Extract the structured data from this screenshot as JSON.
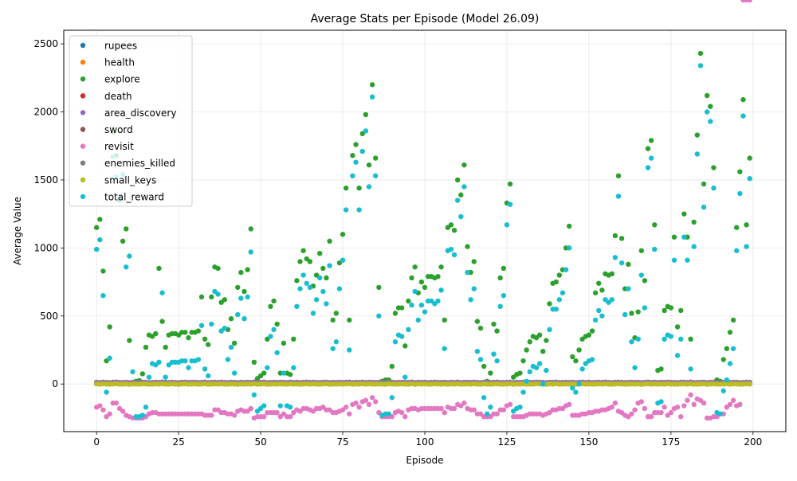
{
  "chart_data": {
    "type": "scatter",
    "title": "Average Stats per Episode (Model 26.09)",
    "xlabel": "Episode",
    "ylabel": "Average Value",
    "xlim": [
      -10,
      210
    ],
    "ylim": [
      -350,
      2600
    ],
    "xticks": [
      0,
      25,
      50,
      75,
      100,
      125,
      150,
      175,
      200
    ],
    "yticks": [
      0,
      500,
      1000,
      1500,
      2000,
      2500
    ],
    "grid": true,
    "legend_position": "top-left",
    "series": [
      {
        "name": "rupees",
        "color": "#1f77b4",
        "pattern": "flat",
        "base": 5
      },
      {
        "name": "health",
        "color": "#ff7f0e",
        "pattern": "flat",
        "base": 3
      },
      {
        "name": "explore",
        "color": "#2ca02c",
        "pattern": "explore"
      },
      {
        "name": "death",
        "color": "#d62728",
        "pattern": "flat",
        "base": 0
      },
      {
        "name": "area_discovery",
        "color": "#9467bd",
        "pattern": "flat",
        "base": 12
      },
      {
        "name": "sword",
        "color": "#8c564b",
        "pattern": "flat",
        "base": 1
      },
      {
        "name": "revisit",
        "color": "#e377c2",
        "pattern": "revisit"
      },
      {
        "name": "enemies_killed",
        "color": "#7f7f7f",
        "pattern": "flat",
        "base": 2
      },
      {
        "name": "small_keys",
        "color": "#bcbd22",
        "pattern": "flat",
        "base": 0
      },
      {
        "name": "total_reward",
        "color": "#17becf",
        "pattern": "total"
      }
    ],
    "explore_values": [
      1150,
      1210,
      830,
      170,
      420,
      1850,
      1680,
      1350,
      1050,
      1140,
      320,
      10,
      20,
      25,
      75,
      270,
      360,
      350,
      370,
      850,
      460,
      270,
      360,
      370,
      370,
      360,
      380,
      380,
      340,
      380,
      380,
      390,
      640,
      330,
      290,
      640,
      860,
      850,
      600,
      620,
      400,
      480,
      300,
      710,
      820,
      680,
      840,
      1140,
      160,
      40,
      60,
      80,
      330,
      570,
      610,
      440,
      80,
      300,
      80,
      70,
      330,
      760,
      900,
      980,
      920,
      900,
      720,
      800,
      960,
      850,
      780,
      1050,
      470,
      520,
      890,
      1100,
      1440,
      470,
      1680,
      1760,
      1440,
      1840,
      1980,
      1610,
      2200,
      1660,
      710,
      20,
      30,
      30,
      130,
      520,
      560,
      560,
      280,
      610,
      780,
      860,
      670,
      750,
      710,
      790,
      790,
      780,
      790,
      860,
      470,
      1150,
      1170,
      1130,
      1500,
      1390,
      1610,
      1010,
      820,
      900,
      460,
      410,
      130,
      20,
      80,
      440,
      390,
      780,
      850,
      1330,
      1470,
      50,
      70,
      80,
      170,
      250,
      310,
      350,
      340,
      360,
      240,
      320,
      590,
      740,
      750,
      800,
      840,
      1000,
      1160,
      200,
      170,
      250,
      330,
      350,
      360,
      390,
      670,
      740,
      690,
      810,
      800,
      810,
      1090,
      1530,
      1070,
      700,
      880,
      520,
      340,
      530,
      980,
      760,
      1730,
      1790,
      1170,
      100,
      110,
      540,
      570,
      560,
      1080,
      420,
      540,
      1250,
      1080,
      330,
      1190,
      1830,
      2430,
      1470,
      2120,
      2040,
      1590,
      30,
      20,
      180,
      260,
      380,
      470,
      1150,
      1560,
      2090,
      1170,
      1660
    ],
    "total_values": [
      990,
      1060,
      650,
      -60,
      190,
      1670,
      1520,
      1370,
      1540,
      860,
      940,
      90,
      -240,
      -240,
      -230,
      -170,
      50,
      150,
      140,
      160,
      670,
      50,
      140,
      160,
      160,
      160,
      170,
      170,
      120,
      170,
      170,
      180,
      430,
      110,
      60,
      440,
      680,
      660,
      390,
      410,
      180,
      270,
      80,
      510,
      630,
      480,
      640,
      970,
      -80,
      -200,
      -180,
      -160,
      120,
      350,
      400,
      230,
      -160,
      80,
      -160,
      -170,
      120,
      570,
      700,
      800,
      740,
      710,
      520,
      620,
      780,
      680,
      590,
      870,
      260,
      310,
      700,
      910,
      1280,
      250,
      1530,
      1630,
      1280,
      1710,
      1860,
      1450,
      2110,
      1530,
      500,
      -230,
      -220,
      -220,
      -100,
      310,
      360,
      350,
      50,
      400,
      580,
      680,
      470,
      580,
      530,
      610,
      610,
      590,
      610,
      690,
      260,
      980,
      990,
      950,
      1350,
      1230,
      1450,
      820,
      620,
      700,
      240,
      180,
      -100,
      -220,
      -170,
      220,
      170,
      570,
      650,
      1170,
      1320,
      -200,
      -180,
      -170,
      -60,
      20,
      90,
      130,
      120,
      150,
      0,
      100,
      400,
      550,
      550,
      620,
      670,
      840,
      1000,
      -30,
      -60,
      0,
      110,
      150,
      170,
      180,
      470,
      540,
      500,
      620,
      600,
      620,
      930,
      1380,
      890,
      510,
      700,
      310,
      120,
      330,
      800,
      560,
      1590,
      1660,
      990,
      -140,
      -130,
      330,
      360,
      350,
      910,
      210,
      330,
      1080,
      910,
      110,
      1010,
      1690,
      2340,
      1300,
      2000,
      1930,
      1440,
      -210,
      -220,
      -50,
      30,
      150,
      260,
      980,
      1400,
      1970,
      1010,
      1510
    ],
    "revisit_values": [
      -170,
      -160,
      -190,
      -240,
      -220,
      -140,
      -140,
      -180,
      -200,
      -230,
      -240,
      -250,
      -250,
      -250,
      -250,
      -240,
      -220,
      -210,
      -210,
      -220,
      -220,
      -220,
      -220,
      -220,
      -220,
      -220,
      -220,
      -220,
      -220,
      -220,
      -220,
      -220,
      -220,
      -230,
      -230,
      -230,
      -190,
      -190,
      -210,
      -210,
      -220,
      -220,
      -230,
      -200,
      -190,
      -200,
      -200,
      -180,
      -250,
      -240,
      -240,
      -240,
      -210,
      -210,
      -210,
      -210,
      -240,
      -220,
      -240,
      -240,
      -210,
      -190,
      -200,
      -180,
      -180,
      -190,
      -200,
      -180,
      -180,
      -170,
      -190,
      -190,
      -210,
      -210,
      -200,
      -190,
      -170,
      -220,
      -150,
      -140,
      -170,
      -130,
      -120,
      -150,
      -100,
      -130,
      -210,
      -240,
      -240,
      -240,
      -240,
      -210,
      -200,
      -210,
      -240,
      -190,
      -180,
      -180,
      -190,
      -180,
      -180,
      -180,
      -180,
      -180,
      -180,
      -180,
      -210,
      -170,
      -180,
      -180,
      -150,
      -160,
      -140,
      -180,
      -190,
      -190,
      -220,
      -220,
      -240,
      -240,
      -240,
      -220,
      -220,
      -190,
      -190,
      -160,
      -150,
      -240,
      -240,
      -240,
      -240,
      -230,
      -220,
      -220,
      -220,
      -220,
      -230,
      -220,
      -210,
      -190,
      -190,
      -180,
      -180,
      -160,
      -150,
      -230,
      -230,
      -230,
      -220,
      -220,
      -210,
      -210,
      -200,
      -200,
      -190,
      -190,
      -180,
      -170,
      -140,
      -200,
      -210,
      -230,
      -240,
      -220,
      -190,
      -140,
      -130,
      -180,
      -240,
      -240,
      -210,
      -210,
      -210,
      -170,
      -230,
      -210,
      -180,
      -170,
      -240,
      -160,
      -120,
      -80,
      -150,
      -110,
      -120,
      -140,
      -250,
      -250,
      -240,
      -240,
      -220,
      -220,
      -170,
      -150,
      -120,
      -160,
      -150
    ],
    "flat_jitter": [
      3,
      -2,
      4,
      1,
      -3,
      2,
      5,
      -1,
      0,
      3,
      -4,
      2,
      1,
      -2,
      4,
      3,
      -3,
      0,
      2,
      -1,
      5,
      1,
      -2,
      3,
      0,
      -4,
      2,
      4,
      -1,
      1,
      3,
      -2,
      0,
      5,
      -3,
      1,
      2,
      -1,
      4,
      0,
      -2,
      3,
      1,
      -4,
      2,
      0,
      3,
      -1,
      5,
      -2,
      1,
      4,
      -3,
      0,
      2,
      -1,
      3,
      1,
      -2,
      4,
      0,
      2,
      -3,
      1,
      5,
      -1,
      3,
      0,
      -2,
      2,
      4,
      -4,
      1,
      0,
      3,
      -1,
      2,
      5,
      -3,
      1,
      0,
      4,
      -2,
      3,
      1,
      -1,
      2,
      0,
      -3,
      4,
      2,
      -2,
      1,
      3,
      0,
      -1,
      5,
      -4,
      2,
      1,
      3,
      -2,
      0,
      4,
      1,
      -1,
      2,
      -3,
      3,
      0,
      5,
      -2,
      1,
      2,
      -1,
      4,
      0,
      -3,
      3,
      1,
      -2,
      2,
      5,
      0,
      -1,
      1,
      4,
      -3,
      2,
      0,
      3,
      -2,
      1,
      -1,
      4,
      2,
      0,
      -4,
      3,
      1,
      5,
      -2,
      0,
      2,
      -1,
      3,
      -3,
      1,
      4,
      0,
      2,
      -2,
      1,
      3,
      -1,
      5,
      0,
      -3,
      2,
      4,
      1,
      -2,
      0,
      3,
      -1,
      2,
      -4,
      1,
      5,
      0,
      3,
      -2,
      2,
      -1,
      4,
      1,
      0,
      -3,
      2,
      3,
      -1,
      5,
      -2,
      0,
      1,
      4,
      -4,
      2,
      3,
      0,
      -1,
      1,
      5,
      -2,
      3,
      2,
      -3,
      0,
      4,
      1,
      -1,
      2
    ]
  }
}
